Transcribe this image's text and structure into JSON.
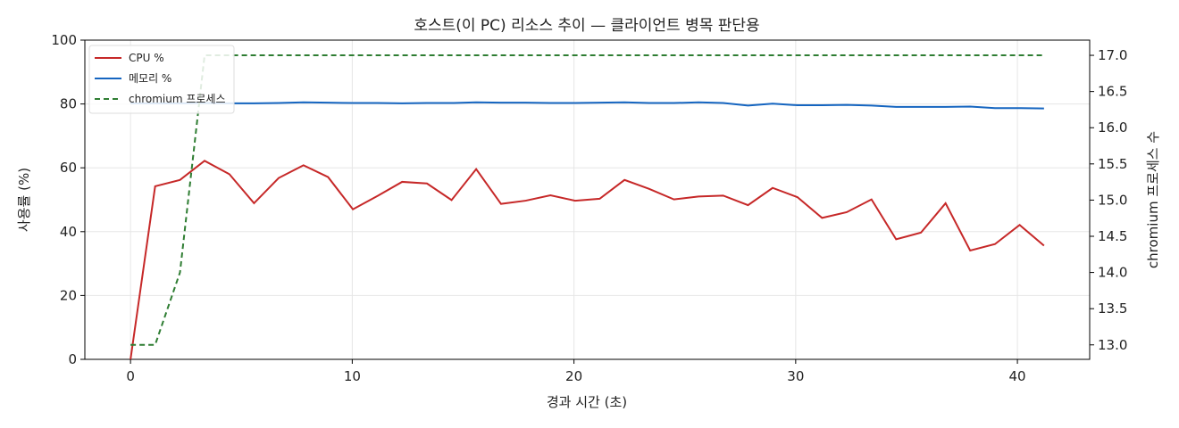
{
  "chart_data": {
    "type": "line",
    "title": "호스트(이 PC) 리소스 추이 — 클라이언트 병목 판단용",
    "x_label": "경과 시간 (초)",
    "y_label": "사용률 (%)",
    "y2_label": "chromium 프로세스 수",
    "x": [
      0,
      1.11,
      2.23,
      3.34,
      4.46,
      5.57,
      6.68,
      7.8,
      8.91,
      10.03,
      11.14,
      12.25,
      13.37,
      14.48,
      15.59,
      16.71,
      17.82,
      18.94,
      20.05,
      21.16,
      22.28,
      23.39,
      24.51,
      25.62,
      26.73,
      27.85,
      28.96,
      30.08,
      31.19,
      32.3,
      33.42,
      34.53,
      35.65,
      36.76,
      37.87,
      38.99,
      40.1,
      41.2
    ],
    "series": [
      {
        "name": "CPU %",
        "color": "#c62828",
        "dash": false,
        "values": [
          0,
          54.2,
          56.2,
          62.2,
          58,
          48.9,
          56.8,
          60.8,
          57.1,
          47,
          51.2,
          55.6,
          55.1,
          49.9,
          59.6,
          48.7,
          49.7,
          51.4,
          49.7,
          50.3,
          56.2,
          53.4,
          50.1,
          51,
          51.3,
          48.3,
          53.7,
          50.8,
          44.3,
          46.1,
          50.1,
          37.6,
          39.7,
          48.9,
          34.1,
          36.1,
          42.1,
          35.6
        ]
      },
      {
        "name": "메모리 %",
        "color": "#1565c0",
        "dash": false,
        "values": [
          80.2,
          80.2,
          80.2,
          80.3,
          80.2,
          80.2,
          80.3,
          80.5,
          80.4,
          80.3,
          80.3,
          80.2,
          80.3,
          80.3,
          80.5,
          80.4,
          80.4,
          80.3,
          80.3,
          80.4,
          80.5,
          80.3,
          80.3,
          80.5,
          80.3,
          79.5,
          80.1,
          79.6,
          79.6,
          79.7,
          79.5,
          79.1,
          79.1,
          79.1,
          79.2,
          78.7,
          78.7,
          78.6
        ]
      },
      {
        "name": "chromium 프로세스",
        "color": "#2e7d32",
        "dash": true,
        "axis": "y2",
        "values": [
          13,
          13,
          14,
          17,
          17,
          17,
          17,
          17,
          17,
          17,
          17,
          17,
          17,
          17,
          17,
          17,
          17,
          17,
          17,
          17,
          17,
          17,
          17,
          17,
          17,
          17,
          17,
          17,
          17,
          17,
          17,
          17,
          17,
          17,
          17,
          17,
          17,
          17
        ]
      }
    ],
    "xlim": [
      -2.06,
      43.26
    ],
    "xticks": [
      0,
      10,
      20,
      30,
      40
    ],
    "ylim": [
      0,
      100
    ],
    "yticks": [
      0,
      20,
      40,
      60,
      80,
      100
    ],
    "y2lim": [
      12.8,
      17.21
    ],
    "y2ticks": [
      {
        "value": 13,
        "label": "13.0"
      },
      13.5,
      {
        "value": 14,
        "label": "14.0"
      },
      14.5,
      {
        "value": 15,
        "label": "15.0"
      },
      15.5,
      {
        "value": 16,
        "label": "16.0"
      },
      16.5,
      {
        "value": 17,
        "label": "17.0"
      }
    ],
    "grid": true,
    "legend": "upper left"
  }
}
